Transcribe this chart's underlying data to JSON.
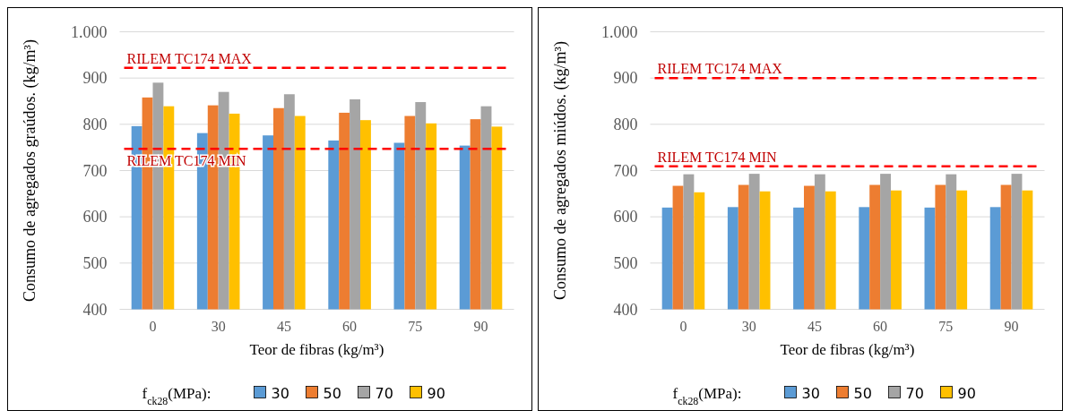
{
  "chart_data": [
    {
      "type": "bar",
      "ylabel": "Consumo de agregados graúdos. (kg/m³)",
      "xlabel": "Teor de fibras (kg/m³)",
      "legend_title": "f$_{ck28}$(MPa):",
      "legend": "bottom",
      "grid": "y",
      "categories": [
        "0",
        "30",
        "45",
        "60",
        "75",
        "90"
      ],
      "ylim": [
        400,
        1000
      ],
      "yticks": [
        400,
        500,
        600,
        700,
        800,
        900,
        {
          "value": 1000,
          "label": "1.000"
        }
      ],
      "series": [
        {
          "name": "30",
          "color": "#5b9bd5",
          "values": [
            796,
            781,
            776,
            765,
            760,
            754
          ]
        },
        {
          "name": "50",
          "color": "#ed7d31",
          "values": [
            858,
            841,
            835,
            825,
            818,
            811
          ]
        },
        {
          "name": "70",
          "color": "#a5a5a5",
          "values": [
            890,
            870,
            865,
            854,
            848,
            839
          ]
        },
        {
          "name": "90",
          "color": "#ffc000",
          "values": [
            839,
            823,
            818,
            809,
            802,
            795
          ]
        }
      ],
      "ref_lines": [
        {
          "axis": "y",
          "value": 922,
          "label": "RILEM TC174 MAX",
          "color": "#ff0000",
          "line_style": "dashed"
        },
        {
          "axis": "y",
          "value": 747,
          "label": "RILEM TC174 MIN",
          "color": "#ff0000",
          "line_style": "dashed"
        }
      ]
    },
    {
      "type": "bar",
      "ylabel": "Consumo de agregados miúdos. (kg/m³)",
      "xlabel": "Teor de fibras (kg/m³)",
      "legend_title": "f$_{ck28}$(MPa):",
      "legend": "bottom",
      "grid": "y",
      "categories": [
        "0",
        "30",
        "45",
        "60",
        "75",
        "90"
      ],
      "ylim": [
        400,
        1000
      ],
      "yticks": [
        400,
        500,
        600,
        700,
        800,
        900,
        {
          "value": 1000,
          "label": "1.000"
        }
      ],
      "series": [
        {
          "name": "30",
          "color": "#5b9bd5",
          "values": [
            620,
            621,
            620,
            621,
            620,
            621
          ]
        },
        {
          "name": "50",
          "color": "#ed7d31",
          "values": [
            667,
            669,
            667,
            669,
            669,
            669
          ]
        },
        {
          "name": "70",
          "color": "#a5a5a5",
          "values": [
            692,
            693,
            692,
            693,
            692,
            693
          ]
        },
        {
          "name": "90",
          "color": "#ffc000",
          "values": [
            653,
            655,
            655,
            657,
            657,
            657
          ]
        }
      ],
      "ref_lines": [
        {
          "axis": "y",
          "value": 900,
          "label": "RILEM TC174 MAX",
          "color": "#ff0000",
          "line_style": "dashed"
        },
        {
          "axis": "y",
          "value": 709,
          "label": "RILEM TC174 MIN",
          "color": "#ff0000",
          "line_style": "dashed"
        }
      ]
    }
  ]
}
